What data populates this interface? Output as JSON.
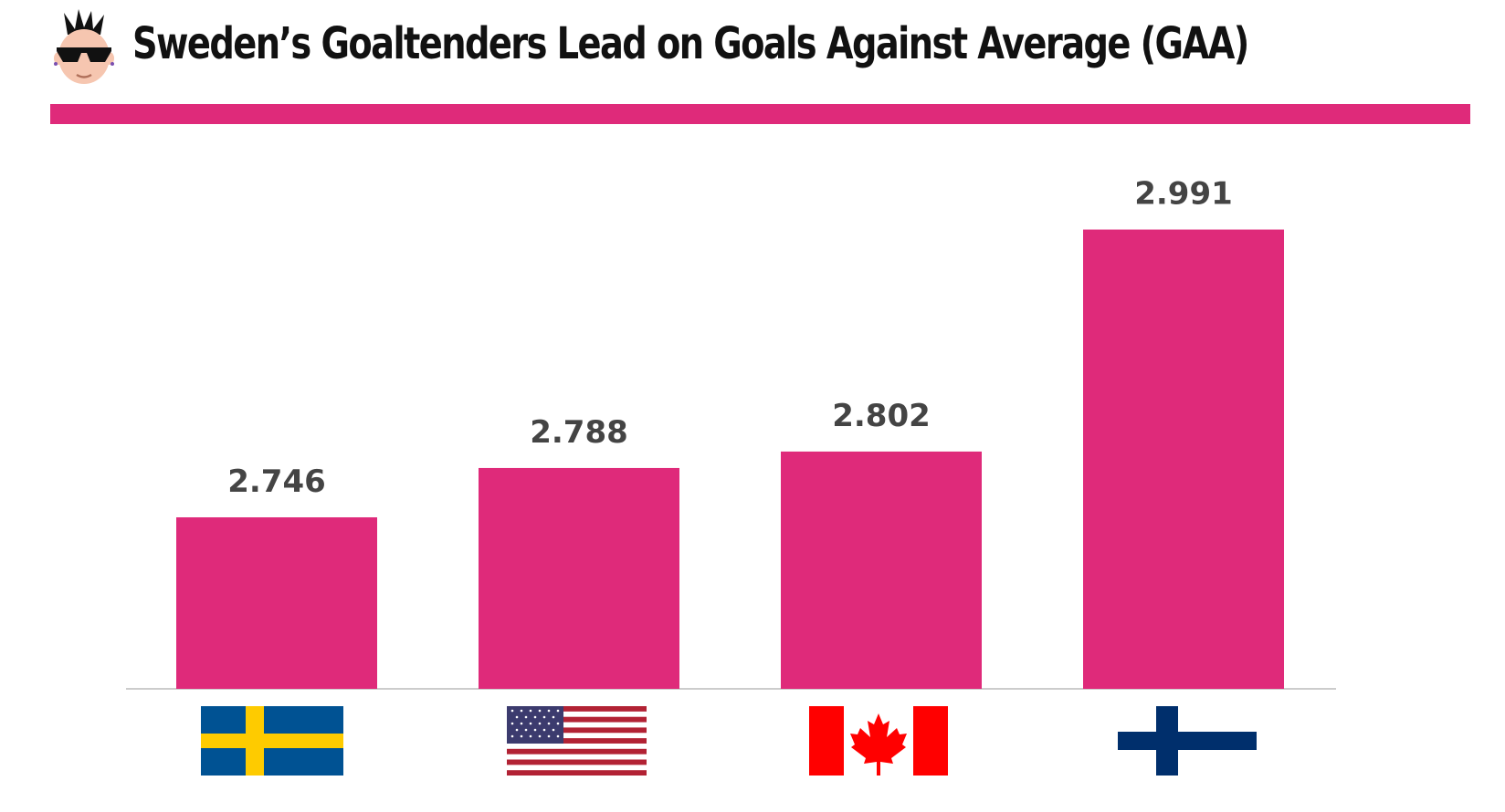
{
  "title": "Sweden’s Goaltenders Lead on Goals Against Average (GAA)",
  "colors": {
    "bar": "#df2a7a",
    "accent_bar": "#df2a7a",
    "label": "#444444",
    "axis": "#cccccc"
  },
  "logo_icon": "punk-face-sunglasses-icon",
  "chart_data": {
    "type": "bar",
    "title": "Sweden’s Goaltenders Lead on Goals Against Average (GAA)",
    "categories": [
      "Sweden",
      "USA",
      "Canada",
      "Finland"
    ],
    "category_icons": [
      "sweden-flag-icon",
      "usa-flag-icon",
      "canada-flag-icon",
      "finland-flag-icon"
    ],
    "values": [
      2.746,
      2.788,
      2.802,
      2.991
    ],
    "value_labels": [
      "2.746",
      "2.788",
      "2.802",
      "2.991"
    ],
    "xlabel": "",
    "ylabel": "",
    "ylim": [
      2.6,
      3.0
    ],
    "grid": false,
    "legend": "none"
  }
}
